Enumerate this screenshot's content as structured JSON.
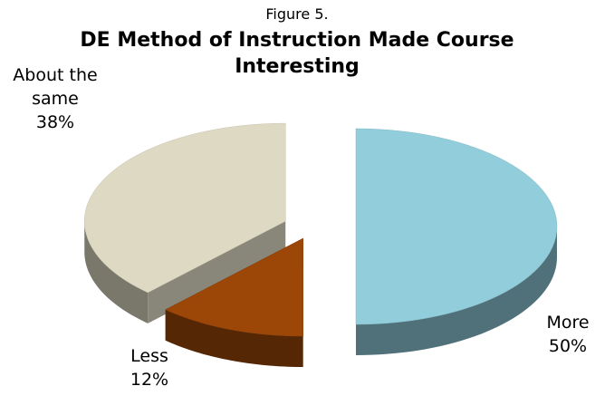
{
  "chart_data": {
    "type": "pie",
    "subtitle": "Figure 5.",
    "title": "DE Method of Instruction Made Course Interesting",
    "categories": [
      "More",
      "Less",
      "About the same"
    ],
    "values": [
      50,
      12,
      38
    ],
    "value_labels": [
      "50%",
      "12%",
      "38%"
    ],
    "colors": [
      "#92cddc",
      "#9c4608",
      "#ddd9c3"
    ]
  }
}
